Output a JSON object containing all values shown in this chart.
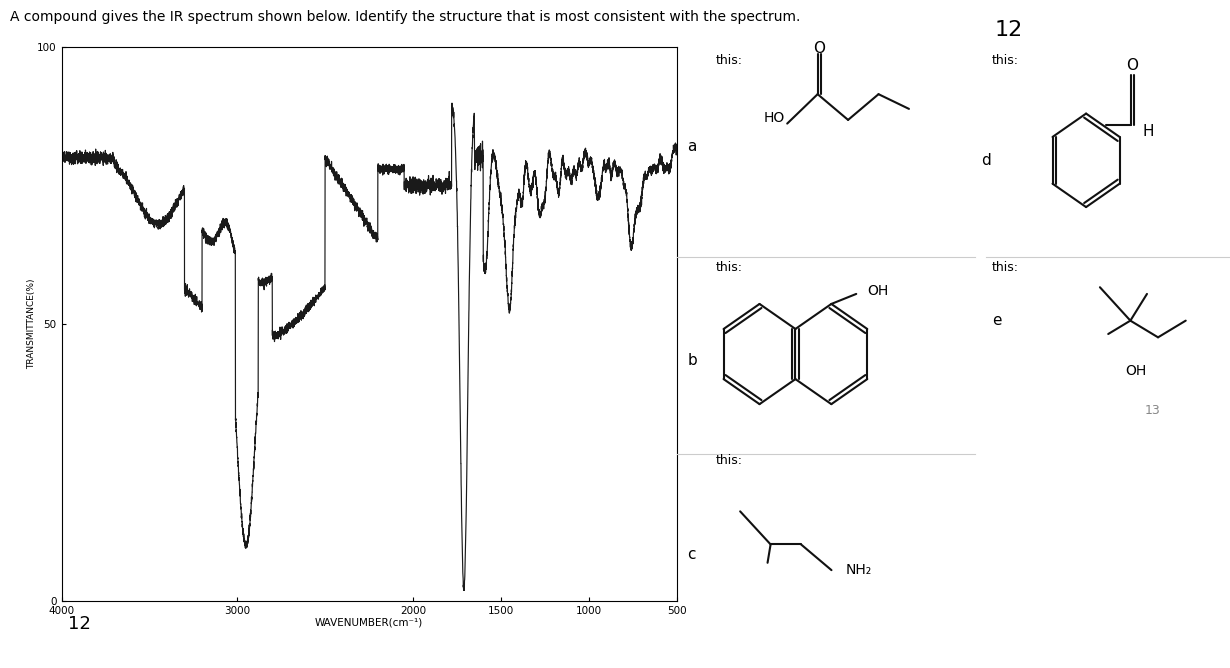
{
  "title": "A compound gives the IR spectrum shown below. Identify the structure that is most consistent with the spectrum.",
  "xlabel": "WAVENUMBER(cm⁻¹)",
  "ylabel": "TRANSMITTANCE(%)",
  "xlim_left": 4000,
  "xlim_right": 500,
  "ylim_bottom": 0,
  "ylim_top": 100,
  "xticks": [
    4000,
    3000,
    2000,
    1500,
    1000,
    500
  ],
  "yticks": [
    0,
    50,
    100
  ],
  "question_number": "12",
  "bottom_number": "12",
  "sub_number": "13",
  "bg_color": "#ffffff",
  "spectrum_color": "#1a1a1a",
  "separator_color": "#cccccc",
  "this_fontsize": 9,
  "label_fontsize": 11,
  "struct_lw": 1.5,
  "struct_color": "#111111"
}
